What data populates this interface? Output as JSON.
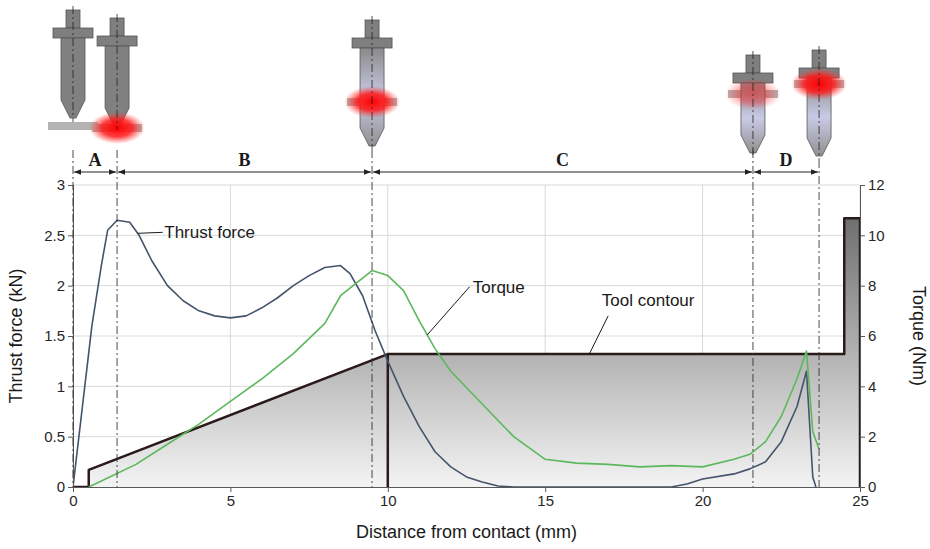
{
  "chart_data": {
    "type": "line",
    "x_label": "Distance from contact (mm)",
    "y_label": "Thrust force (kN)",
    "y2_label": "Torque (Nm)",
    "xlim": [
      0,
      25
    ],
    "xticks": [
      0,
      5,
      10,
      15,
      20,
      25
    ],
    "ylim": [
      0,
      3
    ],
    "yticks": [
      0,
      0.5,
      1,
      1.5,
      2,
      2.5,
      3
    ],
    "y2lim": [
      0,
      12
    ],
    "y2ticks": [
      0,
      2,
      4,
      6,
      8,
      10,
      12
    ],
    "grid": true,
    "series": [
      {
        "name": "Thrust force",
        "color": "#44546a",
        "x": [
          0,
          0.3,
          0.6,
          0.9,
          1.1,
          1.4,
          1.8,
          2.1,
          2.5,
          3,
          3.5,
          4,
          4.5,
          5,
          5.5,
          6,
          6.5,
          7,
          7.5,
          8,
          8.5,
          8.8,
          9.2,
          9.6,
          10,
          10.5,
          11,
          11.5,
          12,
          12.5,
          13,
          13.5,
          14,
          19,
          19.5,
          20,
          21,
          21.5,
          22,
          22.5,
          23,
          23.3,
          23.5,
          23.6
        ],
        "values": [
          0,
          0.8,
          1.6,
          2.2,
          2.55,
          2.65,
          2.63,
          2.5,
          2.25,
          2.0,
          1.85,
          1.75,
          1.7,
          1.68,
          1.7,
          1.78,
          1.88,
          2.0,
          2.1,
          2.18,
          2.2,
          2.12,
          1.9,
          1.55,
          1.25,
          0.9,
          0.6,
          0.35,
          0.2,
          0.1,
          0.05,
          0.01,
          0,
          0,
          0.03,
          0.08,
          0.13,
          0.18,
          0.25,
          0.45,
          0.8,
          1.15,
          0.1,
          0
        ]
      },
      {
        "name": "Torque",
        "color": "#5cb85c",
        "axis": "y2",
        "x": [
          0.5,
          1,
          2,
          3,
          4,
          5,
          6,
          7,
          8,
          8.5,
          9,
          9.5,
          10,
          10.5,
          11,
          11.5,
          12,
          13,
          14,
          15,
          16,
          17,
          18,
          19,
          20,
          21,
          21.5,
          22,
          22.5,
          23,
          23.3,
          23.5,
          23.7
        ],
        "values": [
          0,
          0.3,
          0.9,
          1.7,
          2.5,
          3.4,
          4.3,
          5.3,
          6.5,
          7.6,
          8.1,
          8.6,
          8.4,
          7.8,
          6.6,
          5.5,
          4.6,
          3.3,
          2.0,
          1.1,
          0.95,
          0.9,
          0.8,
          0.85,
          0.8,
          1.1,
          1.3,
          1.8,
          2.8,
          4.3,
          5.4,
          2.2,
          1.5
        ]
      },
      {
        "name": "Tool contour",
        "color": "#2b1a1a",
        "type": "area",
        "x": [
          0,
          0.5,
          0.5,
          10,
          10,
          10,
          24.5,
          24.5,
          25,
          25
        ],
        "values": [
          0,
          0,
          0.17,
          1.32,
          0,
          1.32,
          1.32,
          2.67,
          2.67,
          0
        ]
      }
    ],
    "phases": [
      {
        "label": "A",
        "start": 0,
        "end": 1.4
      },
      {
        "label": "B",
        "start": 1.4,
        "end": 9.5
      },
      {
        "label": "C",
        "start": 9.5,
        "end": 21.6
      },
      {
        "label": "D",
        "start": 21.6,
        "end": 23.7
      }
    ]
  }
}
